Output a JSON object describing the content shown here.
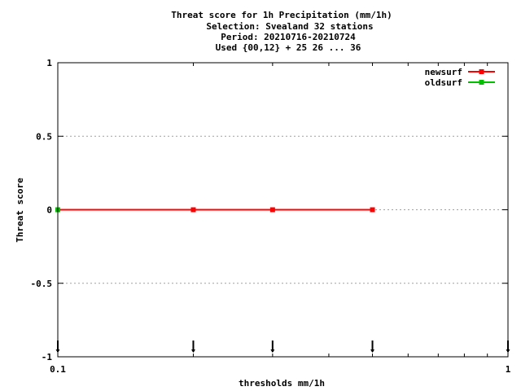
{
  "chart_data": {
    "type": "line",
    "title_lines": [
      "Threat score  for 1h Precipitation (mm/1h)",
      "Selection: Svealand     32 stations",
      "Period: 20210716-20210724",
      "Used {00,12} + 25 26 ... 36"
    ],
    "xlabel": "thresholds mm/1h",
    "ylabel": "Threat score",
    "x_scale": "log",
    "xlim": [
      0.1,
      1
    ],
    "ylim": [
      -1,
      1
    ],
    "x_ticks": [
      {
        "value": 0.1,
        "label": "0.1"
      },
      {
        "value": 1,
        "label": "1"
      }
    ],
    "y_ticks": [
      {
        "value": 1,
        "label": "1"
      },
      {
        "value": 0.5,
        "label": "0.5"
      },
      {
        "value": 0,
        "label": "0"
      },
      {
        "value": -0.5,
        "label": "-0.5"
      },
      {
        "value": -1,
        "label": "-1"
      }
    ],
    "grid": true,
    "legend_position": "top-right",
    "series": [
      {
        "name": "newsurf",
        "color": "#ff0000",
        "x": [
          0.1,
          0.2,
          0.3,
          0.5
        ],
        "y": [
          0,
          0,
          0,
          0
        ]
      },
      {
        "name": "oldsurf",
        "color": "#00c000",
        "x": [
          0.1
        ],
        "y": [
          0
        ]
      }
    ],
    "threshold_markers": [
      0.1,
      0.2,
      0.3,
      0.5,
      1
    ]
  }
}
